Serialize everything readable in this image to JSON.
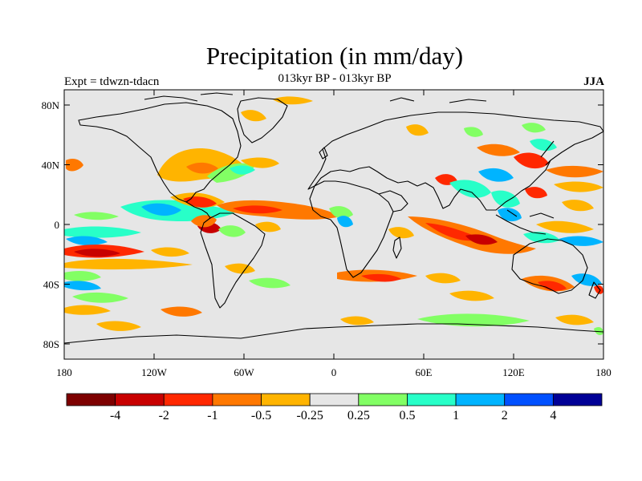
{
  "header": {
    "title": "Precipitation (in mm/day)",
    "subtitle": "013kyr BP - 013kyr BP",
    "experiment": "Expt = tdwzn-tdacn",
    "season": "JJA"
  },
  "map": {
    "background": "#e6e6e6",
    "x_ticks": [
      "180",
      "120W",
      "60W",
      "0",
      "60E",
      "120E",
      "180"
    ],
    "y_ticks": [
      "80N",
      "40N",
      "0",
      "40S",
      "80S"
    ]
  },
  "colorbar": {
    "colors": [
      "#7d0000",
      "#c80000",
      "#ff2800",
      "#ff7800",
      "#ffb400",
      "#e6e6e6",
      "#82ff64",
      "#28ffc8",
      "#00b4ff",
      "#0050ff",
      "#000096"
    ],
    "labels": [
      "-4",
      "-2",
      "-1",
      "-0.5",
      "-0.25",
      "0.25",
      "0.5",
      "1",
      "2",
      "4"
    ]
  },
  "field": {
    "colors": {
      "strong_dry": "#c80000",
      "dry": "#ff2800",
      "mod_dry": "#ff7800",
      "weak_dry": "#ffb400",
      "weak_wet": "#82ff64",
      "mod_wet": "#28ffc8",
      "wet": "#00b4ff",
      "strong_wet": "#0050ff"
    }
  }
}
